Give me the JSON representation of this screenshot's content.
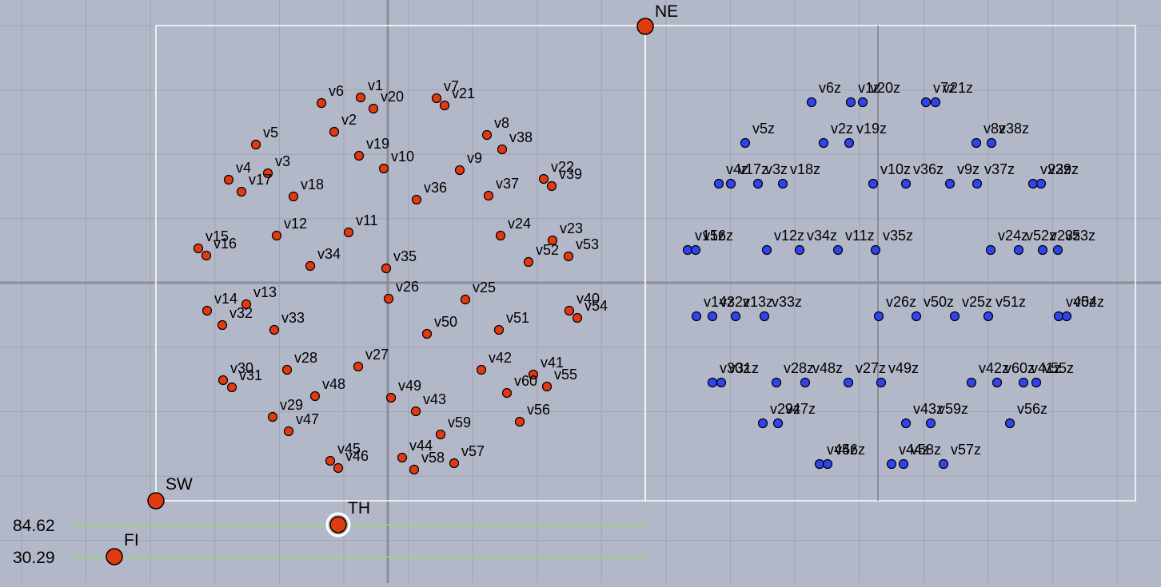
{
  "colors": {
    "background": "#b3b8c8",
    "grid": "#9ea3b4",
    "axis": "#8a8e9c",
    "frame": "#ffffff",
    "red_point": "#e23a10",
    "blue_point": "#2f44ee",
    "slider_line": "#90e070"
  },
  "control_points": [
    {
      "label": "NE",
      "id": "ne"
    },
    {
      "label": "SW",
      "id": "sw"
    },
    {
      "label": "TH",
      "id": "th"
    },
    {
      "label": "FI",
      "id": "fi"
    }
  ],
  "sliders": [
    {
      "id": "th",
      "value": "84.62"
    },
    {
      "id": "fi",
      "value": "30.29"
    }
  ],
  "red_points": [
    {
      "label": "v1"
    },
    {
      "label": "v2"
    },
    {
      "label": "v3"
    },
    {
      "label": "v4"
    },
    {
      "label": "v5"
    },
    {
      "label": "v6"
    },
    {
      "label": "v7"
    },
    {
      "label": "v8"
    },
    {
      "label": "v9"
    },
    {
      "label": "v10"
    },
    {
      "label": "v11"
    },
    {
      "label": "v12"
    },
    {
      "label": "v13"
    },
    {
      "label": "v14"
    },
    {
      "label": "v15"
    },
    {
      "label": "v16"
    },
    {
      "label": "v17"
    },
    {
      "label": "v18"
    },
    {
      "label": "v19"
    },
    {
      "label": "v20"
    },
    {
      "label": "v21"
    },
    {
      "label": "v22"
    },
    {
      "label": "v23"
    },
    {
      "label": "v24"
    },
    {
      "label": "v25"
    },
    {
      "label": "v26"
    },
    {
      "label": "v27"
    },
    {
      "label": "v28"
    },
    {
      "label": "v29"
    },
    {
      "label": "v30"
    },
    {
      "label": "v31"
    },
    {
      "label": "v32"
    },
    {
      "label": "v33"
    },
    {
      "label": "v34"
    },
    {
      "label": "v35"
    },
    {
      "label": "v36"
    },
    {
      "label": "v37"
    },
    {
      "label": "v38"
    },
    {
      "label": "v39"
    },
    {
      "label": "v40"
    },
    {
      "label": "v41"
    },
    {
      "label": "v42"
    },
    {
      "label": "v43"
    },
    {
      "label": "v44"
    },
    {
      "label": "v45"
    },
    {
      "label": "v46"
    },
    {
      "label": "v47"
    },
    {
      "label": "v48"
    },
    {
      "label": "v49"
    },
    {
      "label": "v50"
    },
    {
      "label": "v51"
    },
    {
      "label": "v52"
    },
    {
      "label": "v53"
    },
    {
      "label": "v54"
    },
    {
      "label": "v55"
    },
    {
      "label": "v56"
    },
    {
      "label": "v57"
    },
    {
      "label": "v58"
    },
    {
      "label": "v59"
    },
    {
      "label": "v60"
    }
  ],
  "blue_points": [
    {
      "label": "v6z"
    },
    {
      "label": "v1z"
    },
    {
      "label": "v20z"
    },
    {
      "label": "v7z"
    },
    {
      "label": "v21z"
    },
    {
      "label": "v5z"
    },
    {
      "label": "v2z"
    },
    {
      "label": "v19z"
    },
    {
      "label": "v8z"
    },
    {
      "label": "v38z"
    },
    {
      "label": "v4z"
    },
    {
      "label": "v17z"
    },
    {
      "label": "v3z"
    },
    {
      "label": "v18z"
    },
    {
      "label": "v10z"
    },
    {
      "label": "v36z"
    },
    {
      "label": "v9z"
    },
    {
      "label": "v37z"
    },
    {
      "label": "v22z"
    },
    {
      "label": "v39z"
    },
    {
      "label": "v15z"
    },
    {
      "label": "v16z"
    },
    {
      "label": "v12z"
    },
    {
      "label": "v34z"
    },
    {
      "label": "v11z"
    },
    {
      "label": "v35z"
    },
    {
      "label": "v24z"
    },
    {
      "label": "v52z"
    },
    {
      "label": "v23z"
    },
    {
      "label": "v53z"
    },
    {
      "label": "v14z"
    },
    {
      "label": "v32z"
    },
    {
      "label": "v13z"
    },
    {
      "label": "v33z"
    },
    {
      "label": "v26z"
    },
    {
      "label": "v50z"
    },
    {
      "label": "v25z"
    },
    {
      "label": "v51z"
    },
    {
      "label": "v40z"
    },
    {
      "label": "v54z"
    },
    {
      "label": "v30z"
    },
    {
      "label": "v31z"
    },
    {
      "label": "v28z"
    },
    {
      "label": "v48z"
    },
    {
      "label": "v27z"
    },
    {
      "label": "v49z"
    },
    {
      "label": "v42z"
    },
    {
      "label": "v60z"
    },
    {
      "label": "v41z"
    },
    {
      "label": "v55z"
    },
    {
      "label": "v29z"
    },
    {
      "label": "v47z"
    },
    {
      "label": "v43z"
    },
    {
      "label": "v59z"
    },
    {
      "label": "v56z"
    },
    {
      "label": "v45z"
    },
    {
      "label": "v46z"
    },
    {
      "label": "v44z"
    },
    {
      "label": "v58z"
    },
    {
      "label": "v57z"
    }
  ]
}
